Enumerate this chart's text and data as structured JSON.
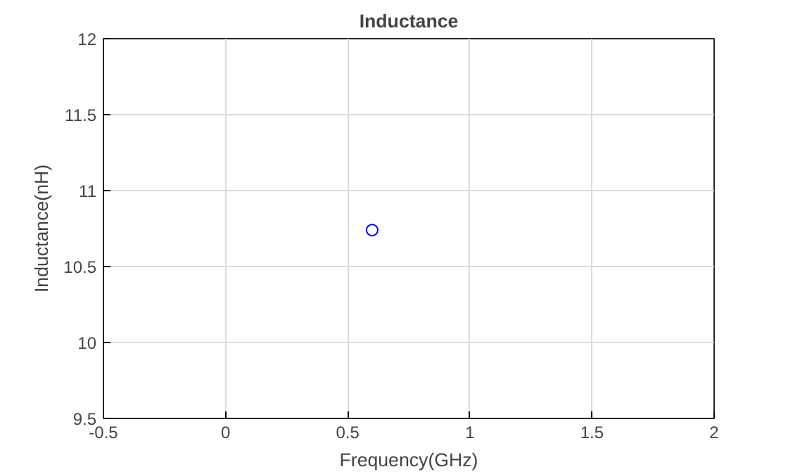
{
  "chart_data": {
    "type": "scatter",
    "title": "Inductance",
    "xlabel": "Frequency(GHz)",
    "ylabel": "Inductance(nH)",
    "x": [
      0.6
    ],
    "series": [
      {
        "color": "#0000ff",
        "values": [
          10.74
        ]
      }
    ],
    "xlim": [
      -0.5,
      2
    ],
    "ylim": [
      9.5,
      12
    ],
    "xticks": [
      -0.5,
      0,
      0.5,
      1,
      1.5,
      2
    ],
    "yticks": [
      9.5,
      10,
      10.5,
      11,
      11.5,
      12
    ],
    "grid": true,
    "marker": "circle"
  }
}
